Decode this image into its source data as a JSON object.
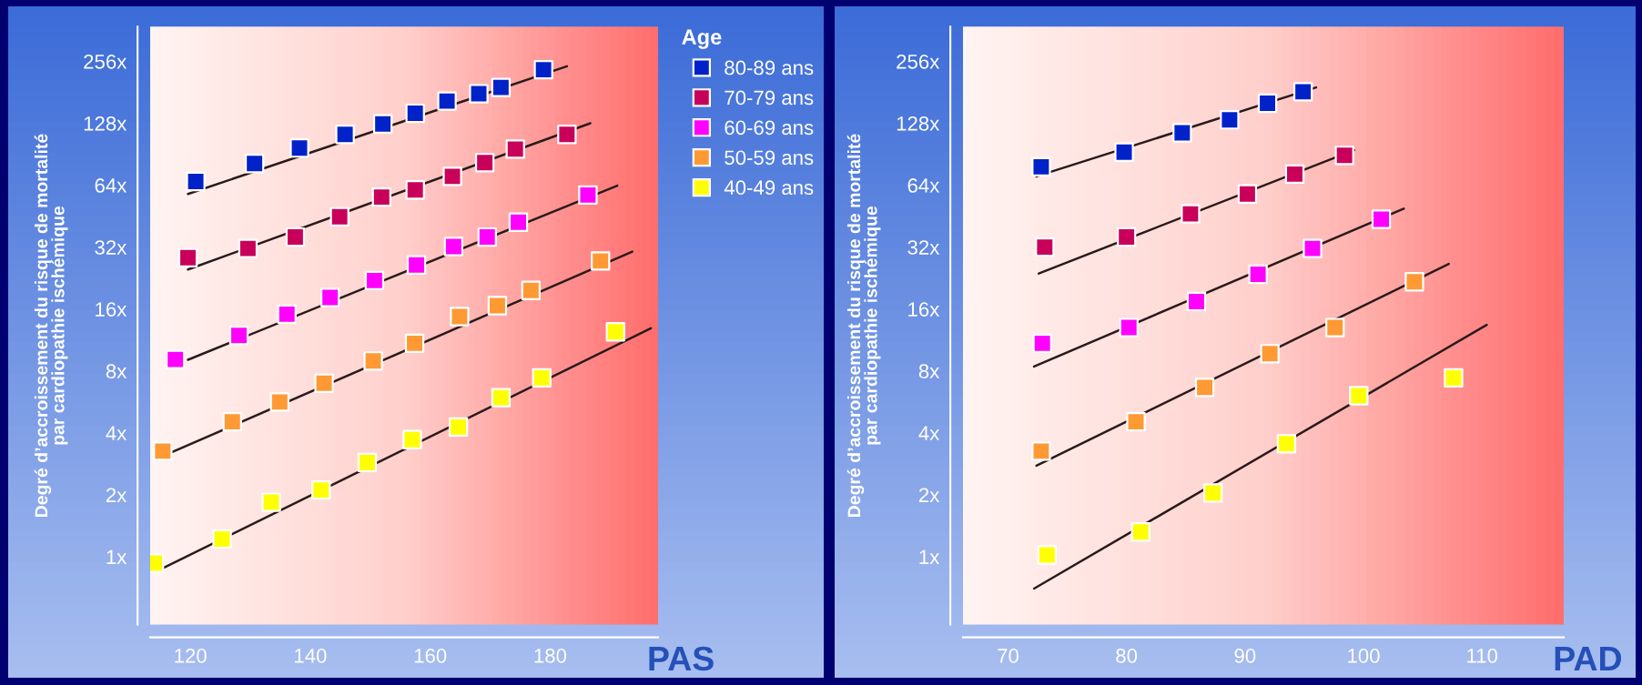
{
  "chart_data": [
    {
      "type": "scatter",
      "xlabel": "PAS",
      "ylabel": "Degré d’accroissement du risque de mortalité\npar cardiopathie ischémique",
      "legend_title": "Age",
      "legend": "right",
      "log": "y",
      "marker": "square",
      "grid": false,
      "xlim": [
        113.3,
        198
      ],
      "xticks": [
        120,
        140,
        160,
        180
      ],
      "ylim": [
        0.467,
        377
      ],
      "yticks": [
        {
          "value": 1,
          "label": "1x"
        },
        {
          "value": 2,
          "label": "2x"
        },
        {
          "value": 4,
          "label": "4x"
        },
        {
          "value": 8,
          "label": "8x"
        },
        {
          "value": 16,
          "label": "16x"
        },
        {
          "value": 32,
          "label": "32x"
        },
        {
          "value": 64,
          "label": "64x"
        },
        {
          "value": 128,
          "label": "128x"
        },
        {
          "value": 256,
          "label": "256x"
        }
      ],
      "series": [
        {
          "name": "80-89 ans",
          "color": "#0022c8",
          "x": [
            120.9,
            130.7,
            138.2,
            145.8,
            152.1,
            157.5,
            162.8,
            168.1,
            171.8,
            178.9
          ],
          "values": [
            66.7,
            81.5,
            97,
            113,
            127,
            143,
            164,
            178,
            191,
            233
          ]
        },
        {
          "name": "70-79 ans",
          "color": "#c8005a",
          "x": [
            119.6,
            129.6,
            137.5,
            144.9,
            151.9,
            157.5,
            163.7,
            169.1,
            174.2,
            182.8
          ],
          "values": [
            28.4,
            31.5,
            35.8,
            44.9,
            56,
            60.7,
            70.6,
            82.3,
            95.8,
            113
          ]
        },
        {
          "name": "60-69 ans",
          "color": "#ff00ff",
          "x": [
            117.5,
            128.1,
            136.1,
            143.3,
            150.7,
            157.7,
            163.9,
            169.5,
            174.7,
            186.3
          ],
          "values": [
            9.1,
            11.9,
            15.1,
            18.2,
            22,
            26.2,
            32.2,
            35.8,
            42.3,
            57.3
          ]
        },
        {
          "name": "50-59 ans",
          "color": "#ff9933",
          "x": [
            115.4,
            127,
            134.9,
            142.3,
            150.5,
            157.4,
            164.9,
            171.2,
            176.8,
            188.4
          ],
          "values": [
            3.26,
            4.53,
            5.65,
            6.97,
            8.94,
            10.9,
            14.7,
            16.6,
            19.7,
            27.4
          ]
        },
        {
          "name": "40-49 ans",
          "color": "#ffff00",
          "x": [
            114,
            125.3,
            133.5,
            141.8,
            149.5,
            157,
            164.7,
            171.8,
            178.6,
            190.9
          ],
          "values": [
            0.93,
            1.22,
            1.84,
            2.11,
            2.87,
            3.71,
            4.27,
            5.93,
            7.4,
            12.4
          ]
        },
        {
          "type": "line",
          "marker": "none",
          "color": "#2a1a1a",
          "x": [
            119.6,
            182.8
          ],
          "values": [
            58,
            242
          ]
        },
        {
          "type": "line",
          "marker": "none",
          "color": "#2a1a1a",
          "x": [
            119.6,
            186.7
          ],
          "values": [
            24.9,
            128
          ]
        },
        {
          "type": "line",
          "marker": "none",
          "color": "#2a1a1a",
          "x": [
            119.6,
            191.2
          ],
          "values": [
            9.06,
            63.6
          ]
        },
        {
          "type": "line",
          "marker": "none",
          "color": "#2a1a1a",
          "x": [
            116.8,
            193.7
          ],
          "values": [
            3.21,
            30.4
          ]
        },
        {
          "type": "line",
          "marker": "none",
          "color": "#2a1a1a",
          "x": [
            115.4,
            196.8
          ],
          "values": [
            0.88,
            12.9
          ]
        }
      ]
    },
    {
      "type": "scatter",
      "xlabel": "PAD",
      "ylabel": "Degré d’accroissement du risque de mortalité\npar cardiopathie ischémique",
      "log": "y",
      "marker": "square",
      "grid": false,
      "xlim": [
        66.2,
        116.9
      ],
      "xticks": [
        70,
        80,
        90,
        100,
        110
      ],
      "ylim": [
        0.467,
        377
      ],
      "yticks": [
        {
          "value": 1,
          "label": "1x"
        },
        {
          "value": 2,
          "label": "2x"
        },
        {
          "value": 4,
          "label": "4x"
        },
        {
          "value": 8,
          "label": "8x"
        },
        {
          "value": 16,
          "label": "16x"
        },
        {
          "value": 32,
          "label": "32x"
        },
        {
          "value": 64,
          "label": "64x"
        },
        {
          "value": 128,
          "label": "128x"
        },
        {
          "value": 256,
          "label": "256x"
        }
      ],
      "series": [
        {
          "color": "#0022c8",
          "x": [
            72.8,
            79.8,
            84.7,
            88.7,
            91.9,
            94.9
          ],
          "values": [
            78.6,
            92.6,
            115,
            133,
            160,
            182
          ]
        },
        {
          "color": "#c8005a",
          "x": [
            73.1,
            80,
            85.4,
            90.2,
            94.2,
            98.4
          ],
          "values": [
            32,
            35.8,
            46.4,
            58,
            72.4,
            89.3
          ]
        },
        {
          "color": "#ff00ff",
          "x": [
            72.9,
            80.2,
            85.9,
            91.1,
            95.7,
            101.5
          ],
          "values": [
            10.9,
            13,
            17.4,
            23.6,
            31.5,
            43.7
          ]
        },
        {
          "color": "#ff9933",
          "x": [
            72.8,
            80.8,
            86.6,
            92.1,
            97.6,
            104.3
          ],
          "values": [
            3.26,
            4.53,
            6.65,
            9.7,
            13,
            21.7
          ]
        },
        {
          "color": "#ffff00",
          "x": [
            73.3,
            81.2,
            87.3,
            93.5,
            99.6,
            107.6
          ],
          "values": [
            1.02,
            1.32,
            2.04,
            3.54,
            6.06,
            7.4
          ]
        },
        {
          "type": "line",
          "marker": "none",
          "color": "#2a1a1a",
          "x": [
            72.4,
            96
          ],
          "values": [
            70.6,
            191
          ]
        },
        {
          "type": "line",
          "marker": "none",
          "color": "#2a1a1a",
          "x": [
            72.6,
            99.2
          ],
          "values": [
            23.8,
            94.7
          ]
        },
        {
          "type": "line",
          "marker": "none",
          "color": "#2a1a1a",
          "x": [
            72.2,
            103.4
          ],
          "values": [
            8.4,
            49.2
          ]
        },
        {
          "type": "line",
          "marker": "none",
          "color": "#2a1a1a",
          "x": [
            72.4,
            107.2
          ],
          "values": [
            2.77,
            26.5
          ]
        },
        {
          "type": "line",
          "marker": "none",
          "color": "#2a1a1a",
          "x": [
            72.2,
            110.4
          ],
          "values": [
            0.7,
            13.4
          ]
        }
      ]
    }
  ]
}
